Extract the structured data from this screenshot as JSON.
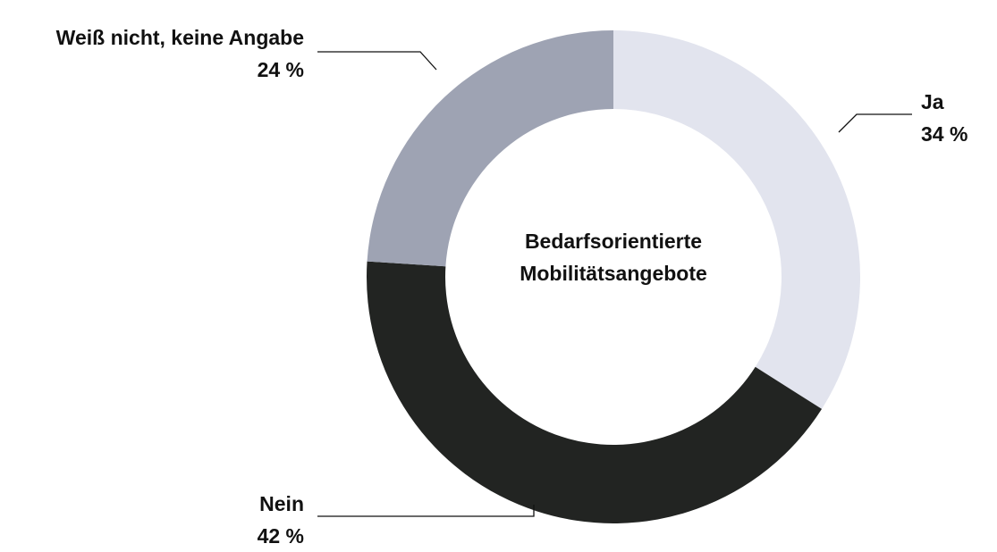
{
  "chart_data": {
    "type": "donut",
    "title": "Bedarfsorientierte Mobilitätsangebote",
    "categories": [
      "Ja",
      "Nein",
      "Weiß nicht, keine Angabe"
    ],
    "values": [
      34,
      42,
      24
    ],
    "value_labels": [
      "34 %",
      "42 %",
      "24 %"
    ],
    "colors": [
      "#e2e4ee",
      "#222422",
      "#9ea3b3"
    ]
  }
}
